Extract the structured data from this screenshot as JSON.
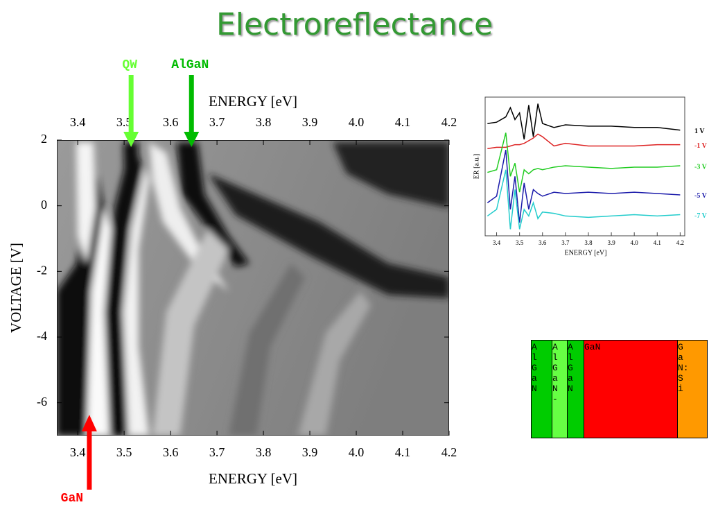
{
  "title": "Electroreflectance",
  "chart_data": [
    {
      "type": "image",
      "xlabel": "ENERGY [eV]",
      "x2label": "ENERGY [eV]",
      "ylabel": "VOLTAGE [V]",
      "xlim": [
        3.355,
        4.2
      ],
      "ylim": [
        -7,
        2
      ],
      "xticks": [
        3.4,
        3.5,
        3.6,
        3.7,
        3.8,
        3.9,
        {
          "value": 4,
          "label": "4.0"
        },
        4.1,
        4.2
      ],
      "yticks": [
        2,
        0,
        -2,
        -4,
        -6
      ],
      "annotations": [
        {
          "text": "QW",
          "x": 3.515,
          "color": "#66ff33"
        },
        {
          "text": "AlGaN",
          "x": 3.645,
          "color": "#00bb00"
        },
        {
          "text": "GaN",
          "x": 3.425,
          "color": "#ff0000"
        }
      ]
    },
    {
      "type": "line",
      "xlabel": "ENERGY [eV]",
      "ylabel": "ER [a.u.]",
      "xlim": [
        3.35,
        4.22
      ],
      "ylim": [
        0,
        10.5
      ],
      "xticks": [
        3.4,
        3.5,
        3.6,
        3.7,
        3.8,
        3.9,
        {
          "value": 4,
          "label": "4.0"
        },
        4.1,
        4.2
      ],
      "x": [
        3.36,
        3.4,
        3.44,
        3.46,
        3.48,
        3.5,
        3.52,
        3.54,
        3.56,
        3.58,
        3.6,
        3.65,
        3.7,
        3.8,
        3.9,
        4.0,
        4.1,
        4.2
      ],
      "series": [
        {
          "name": "1 V",
          "color": "#000000",
          "values": [
            8.5,
            8.6,
            9.0,
            9.7,
            8.8,
            9.3,
            7.3,
            9.9,
            7.5,
            10,
            8.5,
            8.2,
            8.4,
            8.3,
            8.3,
            8.2,
            8.2,
            8.0
          ]
        },
        {
          "name": "-1 V",
          "color": "#dd2222",
          "values": [
            6.6,
            6.7,
            6.7,
            6.8,
            6.9,
            6.9,
            7.0,
            7.2,
            7.4,
            7.7,
            7.5,
            6.8,
            7.0,
            6.8,
            6.8,
            6.8,
            6.9,
            6.9
          ]
        },
        {
          "name": "-3 V",
          "color": "#22cc22",
          "values": [
            4.8,
            5.0,
            7.8,
            4.5,
            5.5,
            3.3,
            5.0,
            4.7,
            5.0,
            5.1,
            5.0,
            5.2,
            5.3,
            5.2,
            5.1,
            5.2,
            5.2,
            5.3
          ]
        },
        {
          "name": "-5 V",
          "color": "#1a1aaa",
          "values": [
            2.5,
            3.0,
            6.5,
            2.0,
            4.5,
            1.0,
            4.0,
            2.0,
            3.5,
            3.2,
            3.0,
            3.3,
            3.2,
            3.3,
            3.2,
            3.3,
            3.2,
            3.1
          ]
        },
        {
          "name": "-7 V",
          "color": "#22cccc",
          "values": [
            1.5,
            2.0,
            5.0,
            0.5,
            3.5,
            0.5,
            2.0,
            1.5,
            2.5,
            1.3,
            1.8,
            1.7,
            1.5,
            1.4,
            1.5,
            1.6,
            1.5,
            1.6
          ]
        }
      ]
    }
  ],
  "layers": [
    {
      "label": "AlGaN",
      "color": "#00cc00"
    },
    {
      "label": "AlGaN-",
      "color": "#66ff44"
    },
    {
      "label": "AlGaN",
      "color": "#00cc00"
    },
    {
      "label": "GaN",
      "color": "#ff0000"
    },
    {
      "label": "GaN:Si",
      "color": "#ff9900"
    }
  ]
}
